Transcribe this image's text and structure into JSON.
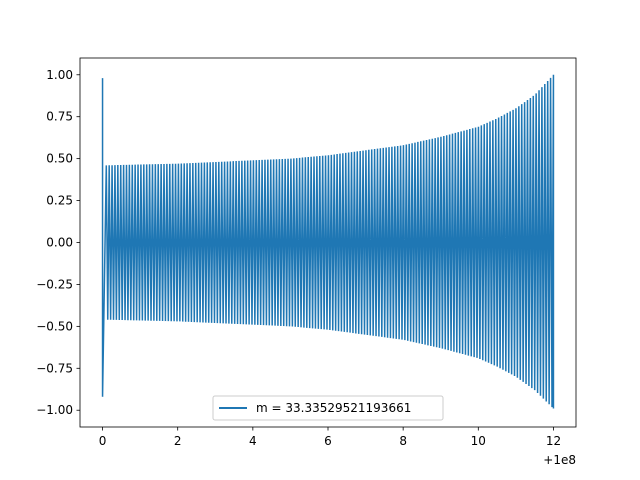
{
  "chart_data": {
    "type": "line",
    "title": "",
    "xlabel": "",
    "ylabel": "",
    "x_offset_label": "+1e8",
    "xlim": [
      -0.6,
      12.6
    ],
    "ylim": [
      -1.1,
      1.1
    ],
    "x_ticks": [
      0,
      2,
      4,
      6,
      8,
      10,
      12
    ],
    "x_tick_labels": [
      "0",
      "2",
      "4",
      "6",
      "8",
      "10",
      "12"
    ],
    "y_ticks": [
      -1.0,
      -0.75,
      -0.5,
      -0.25,
      0.0,
      0.25,
      0.5,
      0.75,
      1.0
    ],
    "y_tick_labels": [
      "−1.00",
      "−0.75",
      "−0.50",
      "−0.25",
      "0.00",
      "0.25",
      "0.50",
      "0.75",
      "1.00"
    ],
    "grid": false,
    "legend_position": "lower-center",
    "series": [
      {
        "name": "m = 33.33529521193661",
        "color": "#1f77b4",
        "style": "dense oscillation",
        "x_start": 0,
        "x_end": 12,
        "cycles": 155,
        "initial_spike": {
          "x": 0,
          "max": 0.98,
          "min": -0.92
        },
        "envelope": {
          "x": [
            0.1,
            1,
            2,
            3,
            4,
            5,
            6,
            7,
            8,
            9,
            10,
            10.5,
            11,
            11.5,
            12
          ],
          "upper": [
            0.46,
            0.465,
            0.47,
            0.48,
            0.49,
            0.5,
            0.52,
            0.55,
            0.58,
            0.63,
            0.69,
            0.74,
            0.8,
            0.88,
            1.0
          ],
          "lower": [
            -0.46,
            -0.465,
            -0.47,
            -0.48,
            -0.49,
            -0.5,
            -0.52,
            -0.55,
            -0.58,
            -0.63,
            -0.69,
            -0.74,
            -0.8,
            -0.88,
            -0.99
          ]
        }
      }
    ]
  }
}
